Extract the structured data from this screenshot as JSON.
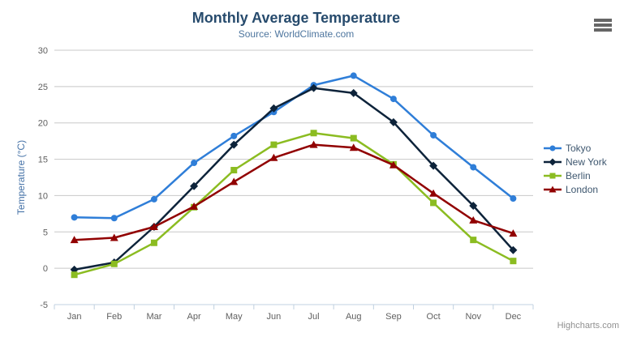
{
  "chart": {
    "title": "Monthly Average Temperature",
    "subtitle": "Source: WorldClimate.com",
    "credits": "Highcharts.com"
  },
  "icons": {
    "context_menu": "hamburger-icon"
  },
  "chart_data": {
    "type": "line",
    "categories": [
      "Jan",
      "Feb",
      "Mar",
      "Apr",
      "May",
      "Jun",
      "Jul",
      "Aug",
      "Sep",
      "Oct",
      "Nov",
      "Dec"
    ],
    "series": [
      {
        "name": "Tokyo",
        "color": "#2f7ed8",
        "marker": "circle",
        "values": [
          7.0,
          6.9,
          9.5,
          14.5,
          18.2,
          21.5,
          25.2,
          26.5,
          23.3,
          18.3,
          13.9,
          9.6
        ]
      },
      {
        "name": "New York",
        "color": "#0d233a",
        "marker": "diamond",
        "values": [
          -0.2,
          0.8,
          5.7,
          11.3,
          17.0,
          22.0,
          24.8,
          24.1,
          20.1,
          14.1,
          8.6,
          2.5
        ]
      },
      {
        "name": "Berlin",
        "color": "#8bbc21",
        "marker": "square",
        "values": [
          -0.9,
          0.6,
          3.5,
          8.4,
          13.5,
          17.0,
          18.6,
          17.9,
          14.3,
          9.0,
          3.9,
          1.0
        ]
      },
      {
        "name": "London",
        "color": "#910000",
        "marker": "triangle",
        "values": [
          3.9,
          4.2,
          5.7,
          8.5,
          11.9,
          15.2,
          17.0,
          16.6,
          14.2,
          10.3,
          6.6,
          4.8
        ]
      }
    ],
    "title": "Monthly Average Temperature",
    "subtitle": "Source: WorldClimate.com",
    "xlabel": "",
    "ylabel": "Temperature (°C)",
    "ylim": [
      -5,
      30
    ],
    "y_ticks": [
      -5,
      0,
      5,
      10,
      15,
      20,
      25,
      30
    ],
    "grid": true,
    "legend_position": "right"
  },
  "colors": {
    "background": "#ffffff",
    "title": "#274b6d",
    "subtitle": "#4d759e",
    "axis_label": "#606060",
    "axis_title": "#4572a7",
    "grid_line": "#c8c8c8",
    "axis_line": "#c0d0e0",
    "legend_text": "#3e576f",
    "credits": "#909090",
    "menu_icon": "#666666"
  }
}
